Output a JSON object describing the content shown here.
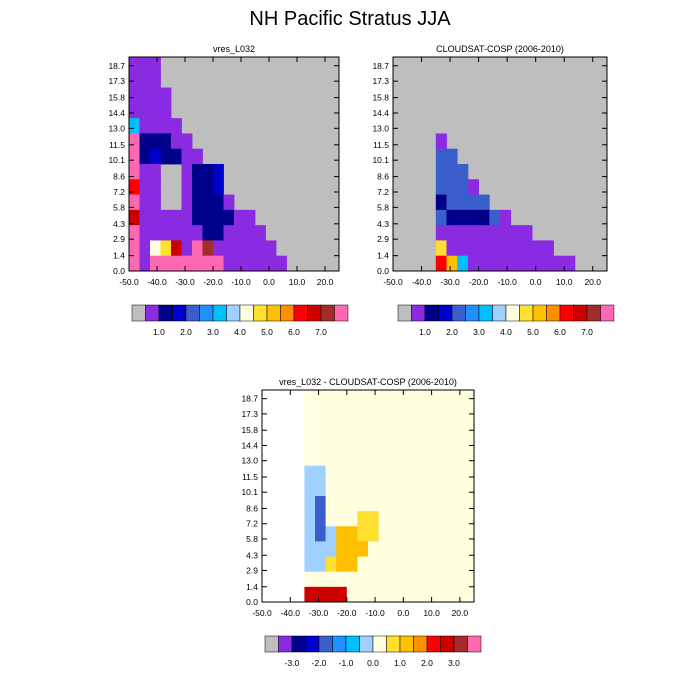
{
  "title": "NH Pacific Stratus JJA",
  "chart_data": [
    {
      "type": "heatmap",
      "title": "vres_L032",
      "x_ticks": [
        "-50.0",
        "-40.0",
        "-30.0",
        "-20.0",
        "-10.0",
        "0.0",
        "10.0",
        "20.0"
      ],
      "y_ticks": [
        "0.0",
        "1.4",
        "2.9",
        "4.3",
        "5.8",
        "7.2",
        "8.6",
        "10.1",
        "11.5",
        "13.0",
        "14.4",
        "15.8",
        "17.3",
        "18.7"
      ],
      "xlim": [
        -50,
        25
      ],
      "ylim": [
        0,
        19.5
      ],
      "missing_color": "#bebebe",
      "colorbar": {
        "labels": [
          "1.0",
          "2.0",
          "3.0",
          "4.0",
          "5.0",
          "6.0",
          "7.0"
        ],
        "colors": [
          "#bebebe",
          "#8a2be2",
          "#00008b",
          "#0000cd",
          "#3a5fcd",
          "#1e90ff",
          "#00bfff",
          "#a0d0ff",
          "#ffffe0",
          "#ffe030",
          "#ffc000",
          "#ff9000",
          "#ff0000",
          "#cd0000",
          "#a52a2a",
          "#ff69b4"
        ]
      }
    },
    {
      "type": "heatmap",
      "title": "CLOUDSAT-COSP (2006-2010)",
      "x_ticks": [
        "-50.0",
        "-40.0",
        "-30.0",
        "-20.0",
        "-10.0",
        "0.0",
        "10.0",
        "20.0"
      ],
      "y_ticks": [
        "0.0",
        "1.4",
        "2.9",
        "4.3",
        "5.8",
        "7.2",
        "8.6",
        "10.1",
        "11.5",
        "13.0",
        "14.4",
        "15.8",
        "17.3",
        "18.7"
      ],
      "xlim": [
        -50,
        25
      ],
      "ylim": [
        0,
        19.5
      ],
      "missing_color": "#bebebe",
      "colorbar": {
        "labels": [
          "1.0",
          "2.0",
          "3.0",
          "4.0",
          "5.0",
          "6.0",
          "7.0"
        ],
        "colors": [
          "#bebebe",
          "#8a2be2",
          "#00008b",
          "#0000cd",
          "#3a5fcd",
          "#1e90ff",
          "#00bfff",
          "#a0d0ff",
          "#ffffe0",
          "#ffe030",
          "#ffc000",
          "#ff9000",
          "#ff0000",
          "#cd0000",
          "#a52a2a",
          "#ff69b4"
        ]
      }
    },
    {
      "type": "heatmap",
      "title": "vres_L032 - CLOUDSAT-COSP (2006-2010)",
      "x_ticks": [
        "-50.0",
        "-40.0",
        "-30.0",
        "-20.0",
        "-10.0",
        "0.0",
        "10.0",
        "20.0"
      ],
      "y_ticks": [
        "0.0",
        "1.4",
        "2.9",
        "4.3",
        "5.8",
        "7.2",
        "8.6",
        "10.1",
        "11.5",
        "13.0",
        "14.4",
        "15.8",
        "17.3",
        "18.7"
      ],
      "xlim": [
        -50,
        25
      ],
      "ylim": [
        0,
        19.5
      ],
      "missing_color": "#ffffff",
      "colorbar": {
        "labels": [
          "-3.0",
          "-2.0",
          "-1.0",
          "0.0",
          "1.0",
          "2.0",
          "3.0"
        ],
        "colors": [
          "#bebebe",
          "#8a2be2",
          "#00008b",
          "#0000cd",
          "#3a5fcd",
          "#1e90ff",
          "#00bfff",
          "#a0d0ff",
          "#ffffe0",
          "#ffe030",
          "#ffc000",
          "#ff9000",
          "#ff0000",
          "#cd0000",
          "#a52a2a",
          "#ff69b4"
        ]
      }
    }
  ]
}
